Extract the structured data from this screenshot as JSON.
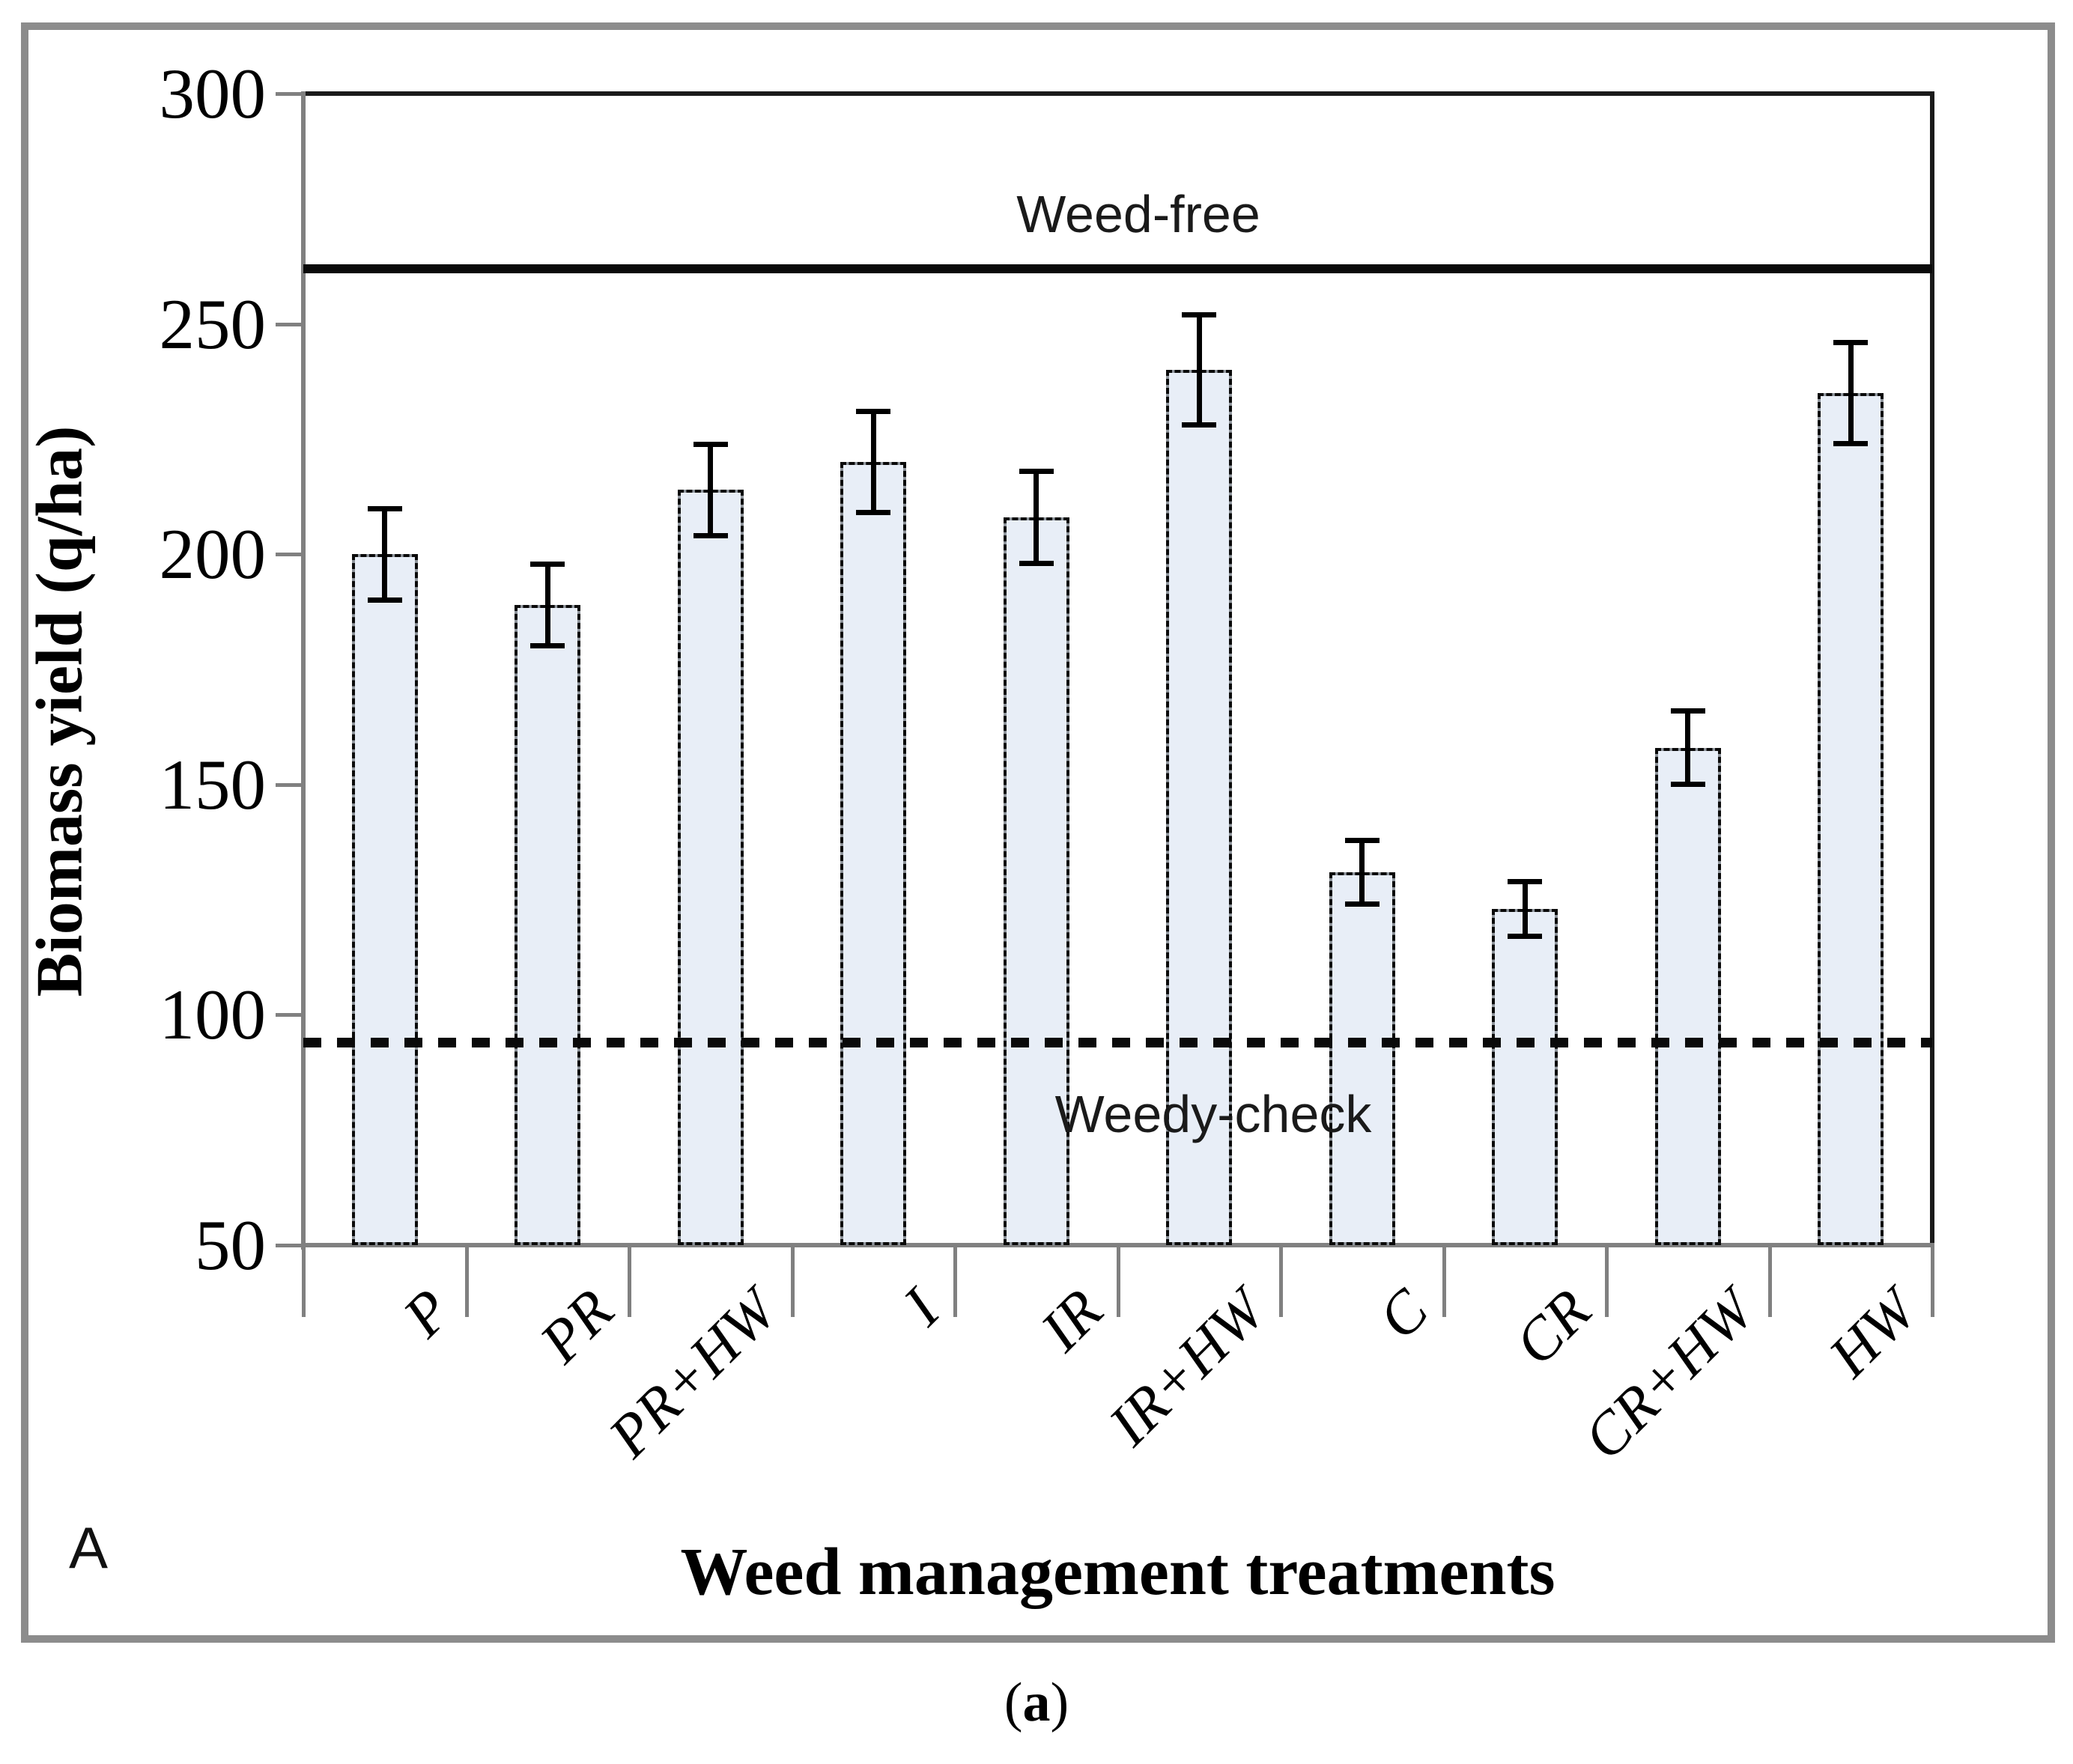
{
  "panel": {
    "letter": "A"
  },
  "caption": {
    "open": "(",
    "letter": "a",
    "close": ")"
  },
  "chart_data": {
    "type": "bar",
    "title": "",
    "xlabel": "Weed management treatments",
    "ylabel": "Biomass yield (q/ha)",
    "ylim": [
      50,
      300
    ],
    "yticks": [
      300,
      250,
      200,
      150,
      100,
      50
    ],
    "grid": false,
    "legend": "none",
    "categories": [
      "P",
      "PR",
      "PR+HW",
      "I",
      "IR",
      "IR+HW",
      "C",
      "CR",
      "CR+HW",
      "HW"
    ],
    "series": [
      {
        "name": "Biomass yield",
        "values": [
          200,
          189,
          214,
          220,
          208,
          240,
          131,
          123,
          158,
          235
        ],
        "errors": [
          10,
          9,
          10,
          11,
          10,
          12,
          7,
          6,
          8,
          11
        ]
      }
    ],
    "reference_lines": [
      {
        "label": "Weed-free",
        "value": 262,
        "style": "solid"
      },
      {
        "label": "Weedy-check",
        "value": 94,
        "style": "dotted"
      }
    ],
    "colors": {
      "bar_fill": "#e8eef7",
      "bar_border": "#0a0a0a",
      "axis": "#808080",
      "frame": "#1a1a1a",
      "error_bar": "#000000",
      "outer_border": "#8c8c8c",
      "text": "#000000"
    }
  }
}
